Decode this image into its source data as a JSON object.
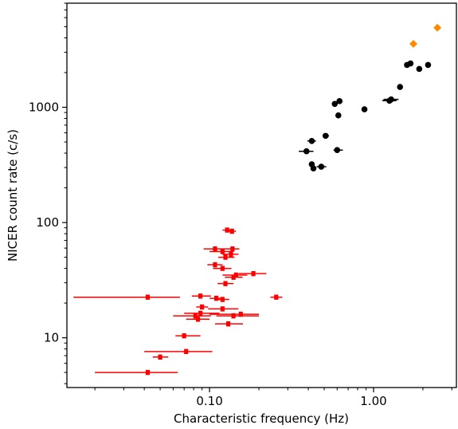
{
  "chart_data": {
    "type": "scatter",
    "xlabel": "Characteristic frequency (Hz)",
    "ylabel": "NICER count rate (c/s)",
    "x_scale": "log",
    "y_scale": "log",
    "xlim": [
      0.0135,
      3.2
    ],
    "ylim": [
      3.7,
      8000
    ],
    "x_ticks": [
      {
        "value": 0.1,
        "label": "0.10"
      },
      {
        "value": 1.0,
        "label": "1.00"
      }
    ],
    "y_ticks": [
      {
        "value": 10,
        "label": "10"
      },
      {
        "value": 100,
        "label": "100"
      },
      {
        "value": 1000,
        "label": "1000"
      }
    ],
    "grid": false,
    "series": [
      {
        "marker": "plus",
        "color": "#ff0000",
        "points": [
          {
            "x": 0.042,
            "y": 22.5,
            "xlo": 0.0148,
            "xhi": 0.066
          },
          {
            "x": 0.042,
            "y": 5.0,
            "xlo": 0.02,
            "xhi": 0.064
          },
          {
            "x": 0.05,
            "y": 6.8,
            "xlo": 0.045,
            "xhi": 0.056
          },
          {
            "x": 0.072,
            "y": 7.6,
            "xlo": 0.04,
            "xhi": 0.104
          },
          {
            "x": 0.07,
            "y": 10.4,
            "xlo": 0.062,
            "xhi": 0.088
          },
          {
            "x": 0.085,
            "y": 14.5,
            "xlo": 0.072,
            "xhi": 0.1
          },
          {
            "x": 0.082,
            "y": 15.5,
            "xlo": 0.06,
            "xhi": 0.102
          },
          {
            "x": 0.088,
            "y": 16.3,
            "xlo": 0.07,
            "xhi": 0.115
          },
          {
            "x": 0.09,
            "y": 18.5,
            "xlo": 0.083,
            "xhi": 0.098
          },
          {
            "x": 0.088,
            "y": 23.0,
            "xlo": 0.078,
            "xhi": 0.102
          },
          {
            "x": 0.11,
            "y": 22.0,
            "xlo": 0.1,
            "xhi": 0.12
          },
          {
            "x": 0.12,
            "y": 21.5,
            "xlo": 0.111,
            "xhi": 0.132
          },
          {
            "x": 0.12,
            "y": 17.8,
            "xlo": 0.098,
            "xhi": 0.15
          },
          {
            "x": 0.14,
            "y": 15.5,
            "xlo": 0.11,
            "xhi": 0.2
          },
          {
            "x": 0.13,
            "y": 13.2,
            "xlo": 0.108,
            "xhi": 0.16
          },
          {
            "x": 0.155,
            "y": 16.0,
            "xlo": 0.1,
            "xhi": 0.2
          },
          {
            "x": 0.125,
            "y": 29.5,
            "xlo": 0.112,
            "xhi": 0.14
          },
          {
            "x": 0.14,
            "y": 33.5,
            "xlo": 0.124,
            "xhi": 0.159
          },
          {
            "x": 0.145,
            "y": 35.0,
            "xlo": 0.12,
            "xhi": 0.17
          },
          {
            "x": 0.185,
            "y": 36.0,
            "xlo": 0.15,
            "xhi": 0.222
          },
          {
            "x": 0.12,
            "y": 40.0,
            "xlo": 0.105,
            "xhi": 0.136
          },
          {
            "x": 0.108,
            "y": 43.0,
            "xlo": 0.097,
            "xhi": 0.12
          },
          {
            "x": 0.125,
            "y": 50.0,
            "xlo": 0.113,
            "xhi": 0.142
          },
          {
            "x": 0.135,
            "y": 53.0,
            "xlo": 0.12,
            "xhi": 0.15
          },
          {
            "x": 0.12,
            "y": 56.0,
            "xlo": 0.1,
            "xhi": 0.14
          },
          {
            "x": 0.108,
            "y": 59.0,
            "xlo": 0.092,
            "xhi": 0.125
          },
          {
            "x": 0.138,
            "y": 59.0,
            "xlo": 0.125,
            "xhi": 0.152
          },
          {
            "x": 0.128,
            "y": 86.0,
            "xlo": 0.12,
            "xhi": 0.136
          },
          {
            "x": 0.137,
            "y": 84.0,
            "xlo": 0.13,
            "xhi": 0.145
          },
          {
            "x": 0.255,
            "y": 22.5,
            "xlo": 0.235,
            "xhi": 0.278
          }
        ]
      },
      {
        "marker": "circle",
        "color": "#000000",
        "points": [
          {
            "x": 0.39,
            "y": 415,
            "xlo": 0.35,
            "xhi": 0.43
          },
          {
            "x": 0.42,
            "y": 510,
            "xlo": 0.395,
            "xhi": 0.445
          },
          {
            "x": 0.42,
            "y": 320,
            "xlo": 0.405,
            "xhi": 0.435
          },
          {
            "x": 0.43,
            "y": 295,
            "xlo": 0.415,
            "xhi": 0.445
          },
          {
            "x": 0.48,
            "y": 305,
            "xlo": 0.45,
            "xhi": 0.515
          },
          {
            "x": 0.51,
            "y": 565,
            "xlo": 0.49,
            "xhi": 0.535
          },
          {
            "x": 0.6,
            "y": 425,
            "xlo": 0.57,
            "xhi": 0.65
          },
          {
            "x": 0.58,
            "y": 1070,
            "xlo": 0.565,
            "xhi": 0.6
          },
          {
            "x": 0.62,
            "y": 1130,
            "xlo": 0.6,
            "xhi": 0.645
          },
          {
            "x": 0.61,
            "y": 850,
            "xlo": 0.59,
            "xhi": 0.63
          },
          {
            "x": 0.88,
            "y": 960,
            "xlo": 0.855,
            "xhi": 0.905
          },
          {
            "x": 1.25,
            "y": 1140,
            "xlo": 1.13,
            "xhi": 1.38
          },
          {
            "x": 1.28,
            "y": 1170,
            "xlo": 1.15,
            "xhi": 1.42
          },
          {
            "x": 1.45,
            "y": 1500,
            "xlo": 1.4,
            "xhi": 1.5
          },
          {
            "x": 1.6,
            "y": 2330,
            "xlo": 1.57,
            "xhi": 1.63
          },
          {
            "x": 1.68,
            "y": 2400,
            "xlo": 1.65,
            "xhi": 1.71
          },
          {
            "x": 1.9,
            "y": 2150,
            "xlo": 1.87,
            "xhi": 1.93
          },
          {
            "x": 2.15,
            "y": 2330,
            "xlo": 2.12,
            "xhi": 2.18
          }
        ]
      },
      {
        "marker": "diamond",
        "color": "#ff8c00",
        "points": [
          {
            "x": 1.75,
            "y": 3550
          },
          {
            "x": 2.45,
            "y": 4900
          }
        ]
      }
    ]
  }
}
